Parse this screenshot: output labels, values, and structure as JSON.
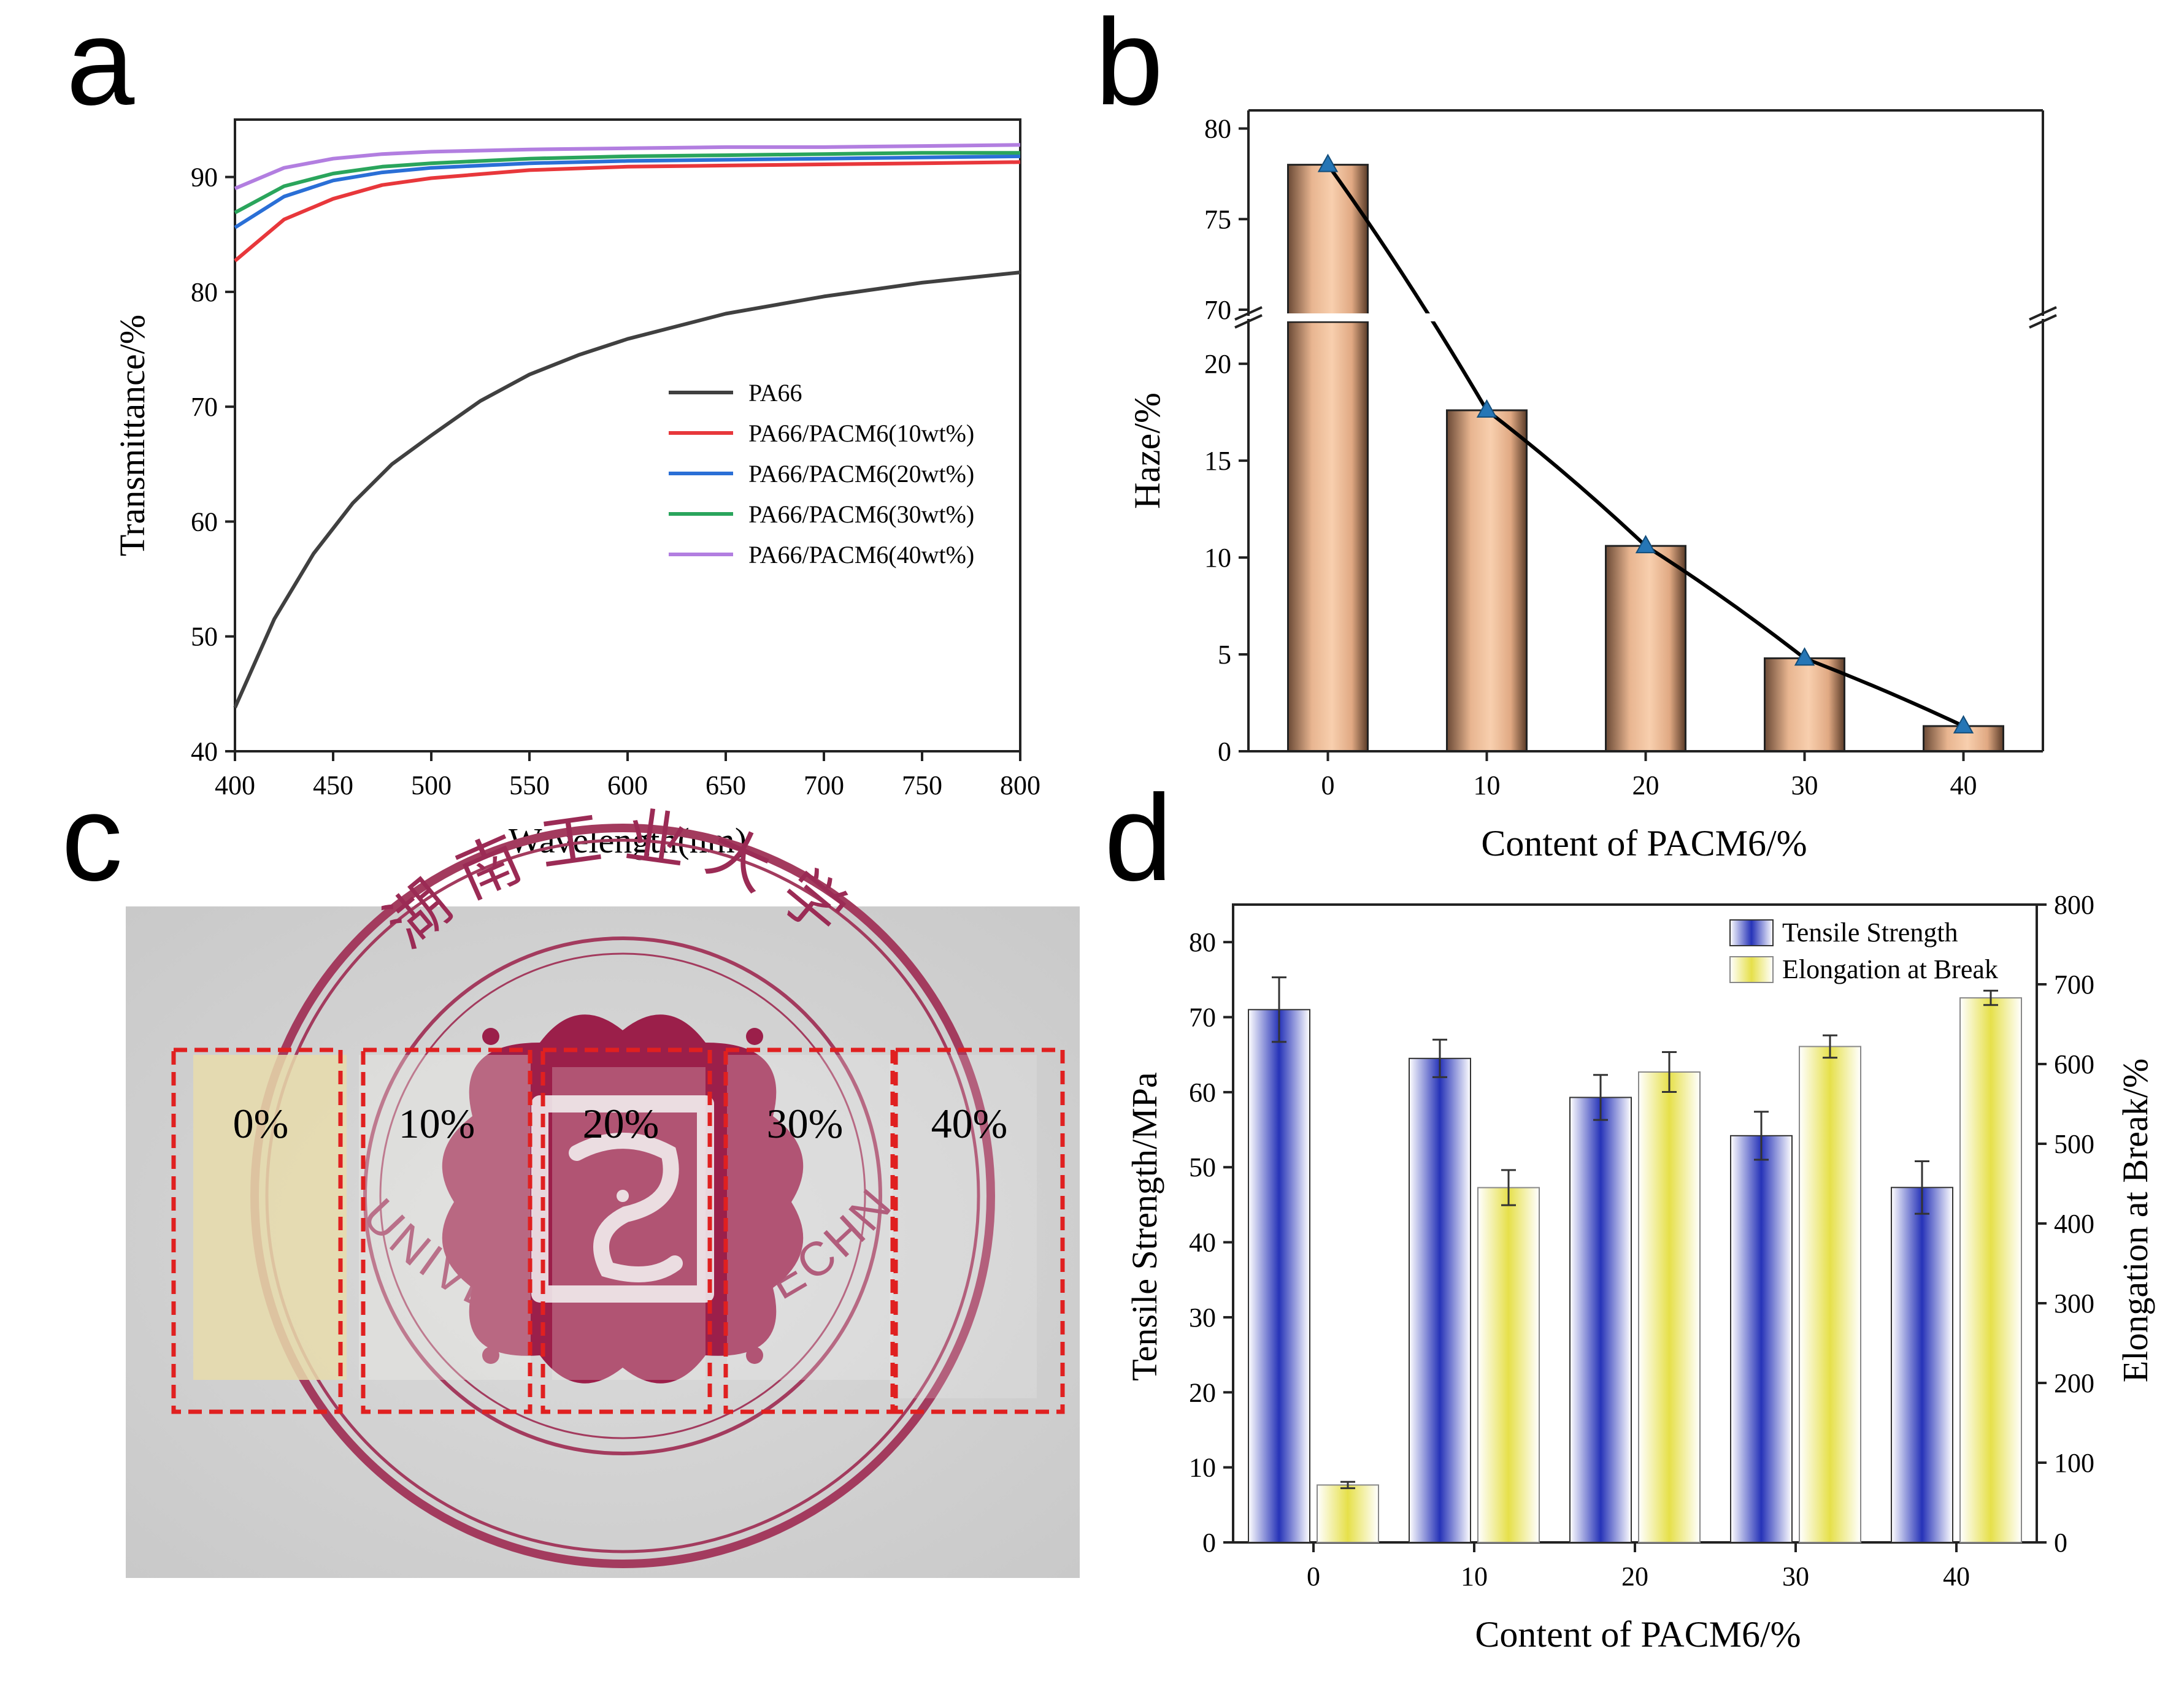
{
  "panels": {
    "a": "a",
    "b": "b",
    "c": "c",
    "d": "d"
  },
  "colors": {
    "PA66": "#404040",
    "PACM6_10": "#e8373b",
    "PACM6_20": "#2a6fd6",
    "PACM6_30": "#2aa55c",
    "PACM6_40": "#b27ee0",
    "haze_bar": "#f5c4a0",
    "haze_marker": "#2676b6",
    "tensile_bar": "#2633b8",
    "elongation_bar": "#e8e35a",
    "dashed_box": "#e02020",
    "seal": "#9b1f4a"
  },
  "photo": {
    "labels": [
      "0%",
      "10%",
      "20%",
      "30%",
      "40%"
    ],
    "seal_text_bottom": "HUNAN UNIVERSITY OF TECHNOLOGY",
    "seal_text_top": "湖南工业大学"
  },
  "chart_data": [
    {
      "id": "a",
      "type": "line",
      "title": "",
      "xlabel": "Wavelength(nm)",
      "ylabel": "Transmittance/%",
      "xlim": [
        400,
        800
      ],
      "ylim": [
        40,
        95
      ],
      "xticks": [
        400,
        450,
        500,
        550,
        600,
        650,
        700,
        750,
        800
      ],
      "yticks": [
        40,
        50,
        60,
        70,
        80,
        90
      ],
      "legend_position": "center-right",
      "series": [
        {
          "name": "PA66",
          "color_key": "PA66",
          "x": [
            400,
            420,
            440,
            460,
            480,
            500,
            525,
            550,
            575,
            600,
            650,
            700,
            750,
            800
          ],
          "y": [
            43.8,
            51.5,
            57.2,
            61.6,
            65.0,
            67.5,
            70.5,
            72.8,
            74.5,
            75.9,
            78.1,
            79.6,
            80.8,
            81.7
          ]
        },
        {
          "name": "PA66/PACM6(10wt%)",
          "color_key": "PACM6_10",
          "x": [
            400,
            425,
            450,
            475,
            500,
            550,
            600,
            650,
            700,
            750,
            800
          ],
          "y": [
            82.7,
            86.3,
            88.1,
            89.3,
            89.9,
            90.6,
            90.9,
            91.0,
            91.1,
            91.2,
            91.3
          ]
        },
        {
          "name": "PA66/PACM6(20wt%)",
          "color_key": "PACM6_20",
          "x": [
            400,
            425,
            450,
            475,
            500,
            550,
            600,
            650,
            700,
            750,
            800
          ],
          "y": [
            85.6,
            88.3,
            89.7,
            90.4,
            90.8,
            91.2,
            91.4,
            91.5,
            91.6,
            91.7,
            91.8
          ]
        },
        {
          "name": "PA66/PACM6(30wt%)",
          "color_key": "PACM6_30",
          "x": [
            400,
            425,
            450,
            475,
            500,
            550,
            600,
            650,
            700,
            750,
            800
          ],
          "y": [
            86.9,
            89.2,
            90.3,
            90.9,
            91.2,
            91.6,
            91.8,
            91.9,
            92.0,
            92.1,
            92.1
          ]
        },
        {
          "name": "PA66/PACM6(40wt%)",
          "color_key": "PACM6_40",
          "x": [
            400,
            425,
            450,
            475,
            500,
            550,
            600,
            650,
            700,
            750,
            800
          ],
          "y": [
            89.0,
            90.8,
            91.6,
            92.0,
            92.2,
            92.4,
            92.5,
            92.6,
            92.6,
            92.7,
            92.8
          ]
        }
      ]
    },
    {
      "id": "b",
      "type": "bar",
      "title": "",
      "xlabel": "Content of PACM6/%",
      "ylabel": "Haze/%",
      "categories": [
        "0",
        "10",
        "20",
        "30",
        "40"
      ],
      "values": [
        78.0,
        17.6,
        10.6,
        4.8,
        1.3
      ],
      "broken_axis": {
        "lower": [
          0,
          22
        ],
        "upper": [
          70,
          80
        ]
      },
      "yticks_lower": [
        0,
        5,
        10,
        15,
        20
      ],
      "yticks_upper": [
        70,
        75,
        80
      ],
      "line_overlay": true
    },
    {
      "id": "d",
      "type": "bar",
      "title": "",
      "xlabel": "Content of PACM6/%",
      "categories": [
        "0",
        "10",
        "20",
        "30",
        "40"
      ],
      "ylabel_left": "Tensile Strength/MPa",
      "ylabel_right": "Elongation at Break/%",
      "ylim_left": [
        0,
        85
      ],
      "ylim_right": [
        0,
        800
      ],
      "yticks_left": [
        0,
        10,
        20,
        30,
        40,
        50,
        60,
        70,
        80
      ],
      "yticks_right": [
        0,
        100,
        200,
        300,
        400,
        500,
        600,
        700,
        800
      ],
      "legend_position": "top-right",
      "series": [
        {
          "name": "Tensile Strength",
          "axis": "left",
          "color_key": "tensile_bar",
          "values": [
            71.0,
            64.5,
            59.3,
            54.2,
            47.3
          ],
          "errors": [
            4.3,
            2.5,
            3.0,
            3.2,
            3.5
          ]
        },
        {
          "name": "Elongation at Break",
          "axis": "right",
          "color_key": "elongation_bar",
          "values": [
            72,
            445,
            590,
            622,
            683
          ],
          "errors": [
            4,
            22,
            25,
            14,
            9
          ]
        }
      ]
    }
  ]
}
